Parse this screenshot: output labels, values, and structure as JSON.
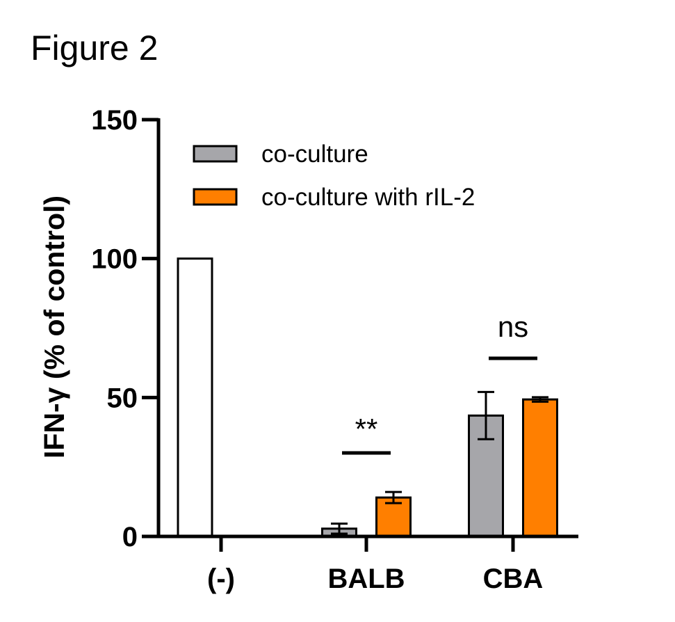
{
  "figure_label": "Figure 2",
  "colors": {
    "co_culture": "#a6a6aa",
    "co_culture_rIL2": "#ff7f00",
    "control": "#ffffff",
    "axis": "#000000"
  },
  "chart_data": {
    "type": "bar",
    "title": "",
    "ylabel": "IFN-γ (% of control)",
    "xlabel": "",
    "ylim": [
      0,
      150
    ],
    "yticks": [
      0,
      50,
      100,
      150
    ],
    "categories": [
      "(-)",
      "BALB",
      "CBA"
    ],
    "legend_position": "top-left",
    "control": {
      "category": "(-)",
      "value": 100
    },
    "series": [
      {
        "name": "co-culture",
        "values": [
          null,
          2.8,
          43.5
        ],
        "errors": [
          null,
          1.8,
          8.5
        ]
      },
      {
        "name": "co-culture with rIL-2",
        "values": [
          null,
          14.0,
          49.3
        ],
        "errors": [
          null,
          2.0,
          0.8
        ]
      }
    ],
    "annotations": [
      {
        "category": "BALB",
        "text": "**"
      },
      {
        "category": "CBA",
        "text": "ns"
      }
    ]
  }
}
